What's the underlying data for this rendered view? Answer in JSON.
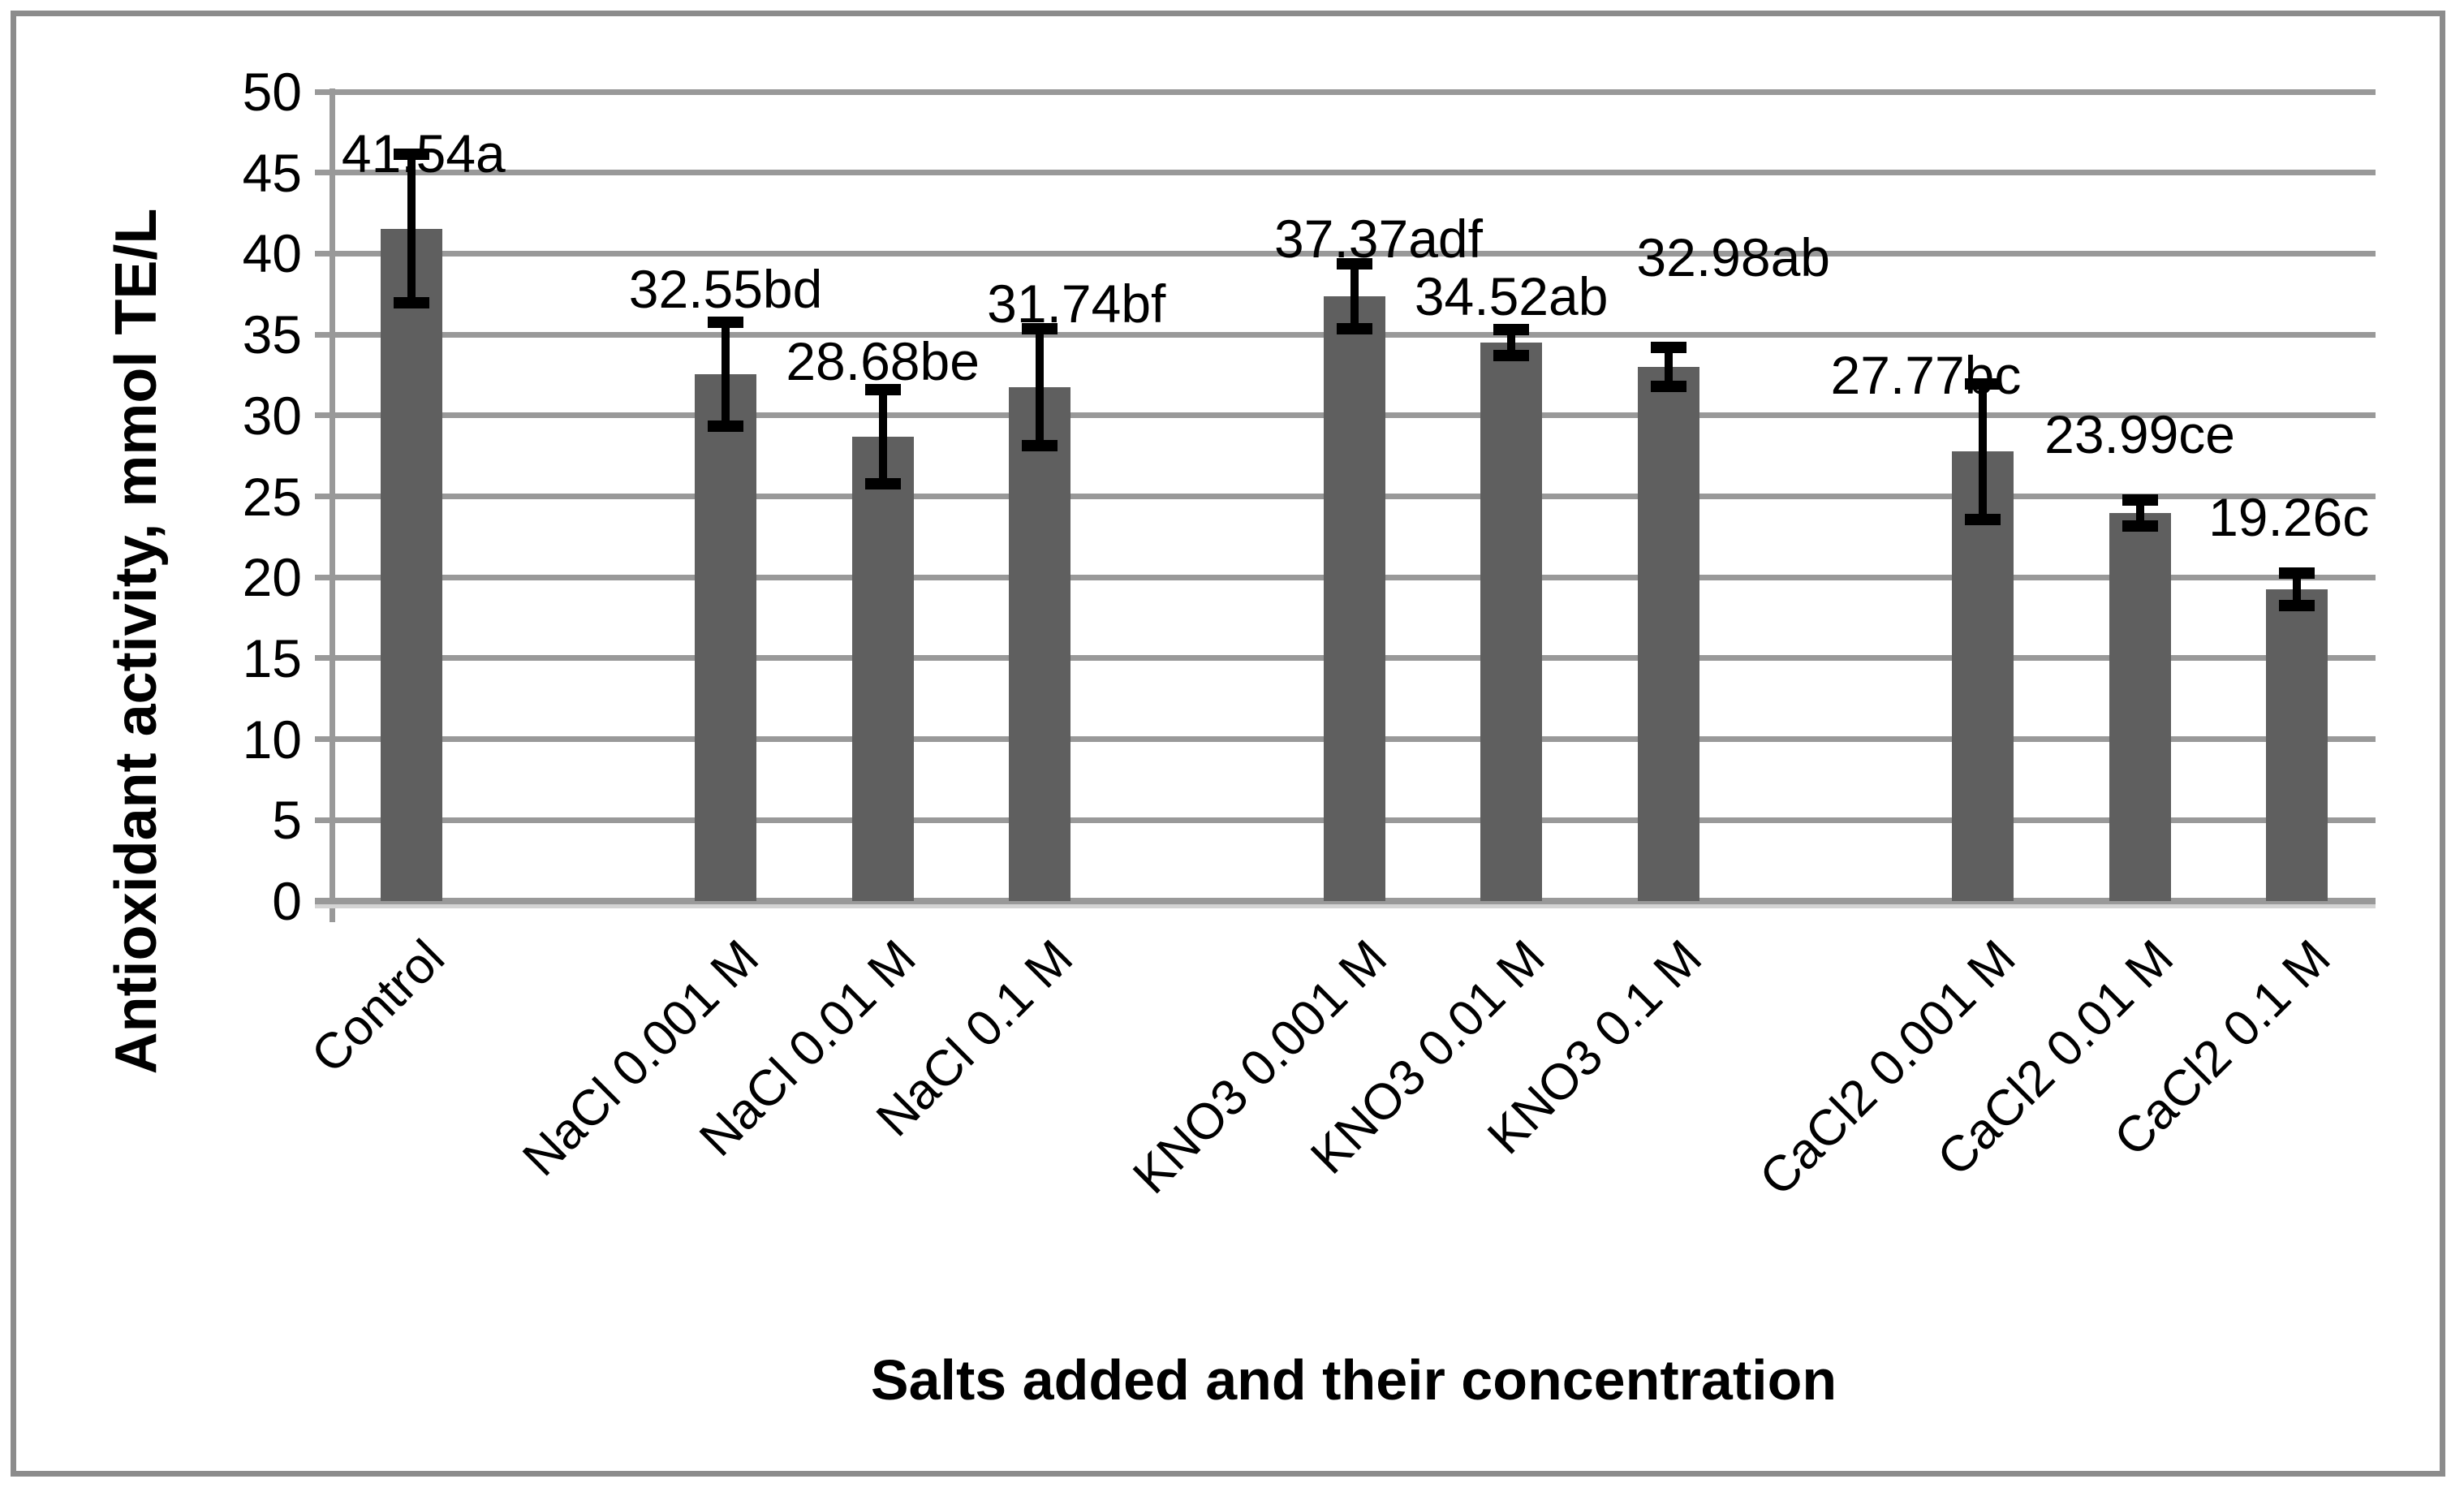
{
  "chart_data": {
    "type": "bar",
    "title": "",
    "xlabel": "Salts added and their concentration",
    "ylabel": "Antioxidant activity, mmol TE/L",
    "ylim": [
      0,
      50
    ],
    "ytick_step": 5,
    "yticks": [
      0,
      5,
      10,
      15,
      20,
      25,
      30,
      35,
      40,
      45,
      50
    ],
    "grid": true,
    "legend": false,
    "categories": [
      "Control",
      "NaCl 0.001 M",
      "NaCl 0.01 M",
      "NaCl 0.1 M",
      "KNO3 0.001 M",
      "KNO3 0.01 M",
      "KNO3 0.1 M",
      "CaCl2 0.001 M",
      "CaCl2 0.01 M",
      "CaCl2 0.1 M"
    ],
    "values": [
      41.54,
      32.55,
      28.68,
      31.74,
      37.37,
      34.52,
      32.98,
      27.77,
      23.99,
      19.26
    ],
    "data_labels": [
      "41.54a",
      "32.55bd",
      "28.68be",
      "31.74bf",
      "37.37adf",
      "34.52ab",
      "32.98ab",
      "27.77bc",
      "23.99ce",
      "19.26c"
    ],
    "error_bars": [
      4.6,
      3.2,
      2.9,
      3.6,
      2.0,
      0.8,
      1.2,
      4.2,
      0.8,
      1.0
    ],
    "layout": {
      "slots_total": 13,
      "slot_of_point": [
        0,
        2,
        3,
        4,
        6,
        7,
        8,
        10,
        11,
        12
      ],
      "label_dx": [
        15,
        0,
        0,
        45,
        30,
        0,
        80,
        -70,
        0,
        -10
      ],
      "label_dy": [
        40,
        0,
        6,
        10,
        10,
        0,
        -70,
        30,
        -40,
        -28
      ],
      "legend_position": "none"
    },
    "colors": {
      "bar": "#5f5f5f",
      "gridline": "#999999",
      "axis": "#999999",
      "error_bar": "#000000",
      "text": "#000000",
      "border": "#8c8c8c",
      "background": "#ffffff"
    }
  }
}
